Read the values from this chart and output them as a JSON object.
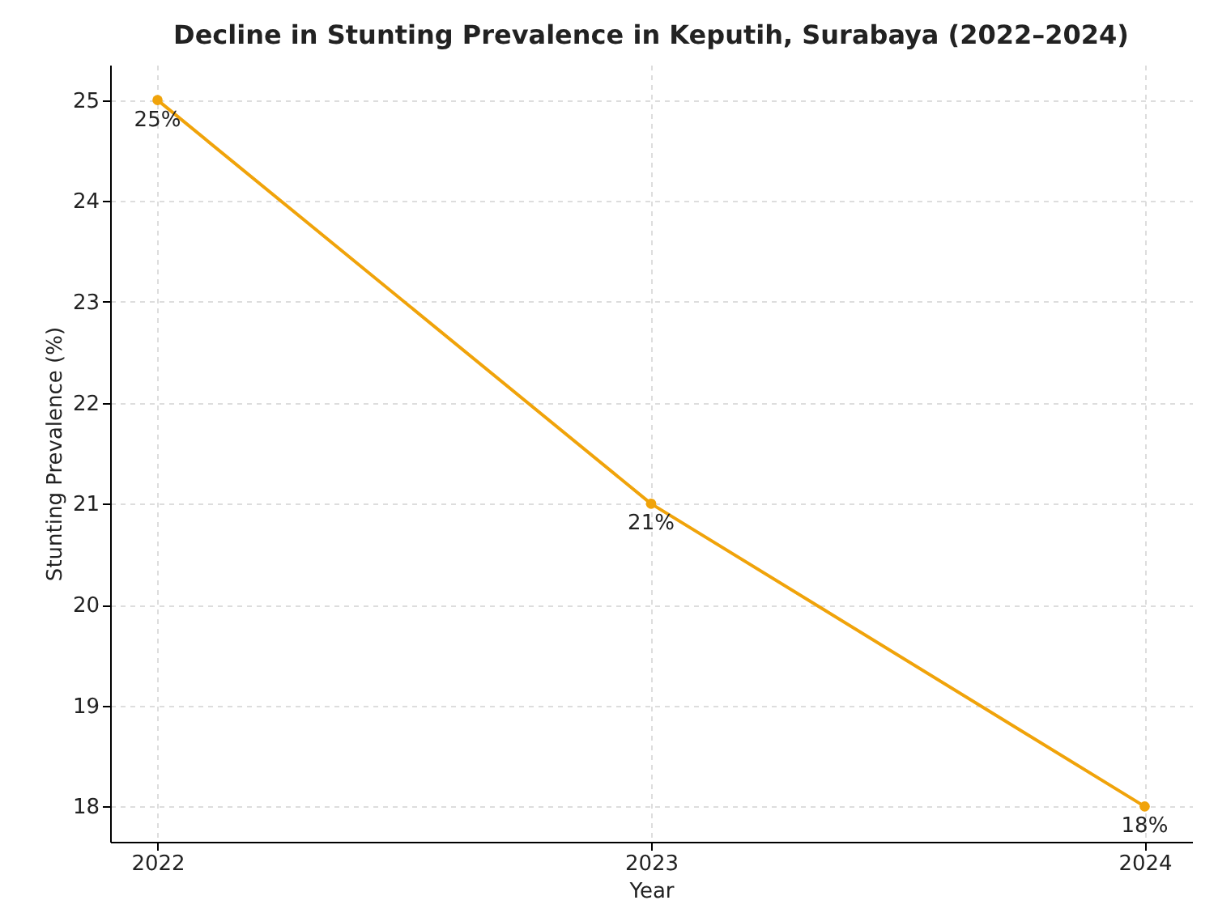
{
  "chart_data": {
    "type": "line",
    "title": "Decline in Stunting Prevalence in Keputih, Surabaya (2022–2024)",
    "xlabel": "Year",
    "ylabel": "Stunting Prevalence (%)",
    "x": [
      2022,
      2023,
      2024
    ],
    "series": [
      {
        "color": "#f0a30a",
        "values": [
          25,
          21,
          18
        ],
        "value_labels": [
          "25%",
          "21%",
          "18%"
        ]
      }
    ],
    "xlim": [
      2021.904,
      2024.096
    ],
    "xticks": [
      2022,
      2023,
      2024
    ],
    "ylim": [
      17.65,
      25.35
    ],
    "yticks": [
      18,
      19,
      20,
      21,
      22,
      23,
      24,
      25
    ],
    "grid": true,
    "marker": "circle",
    "line_style": "solid"
  }
}
